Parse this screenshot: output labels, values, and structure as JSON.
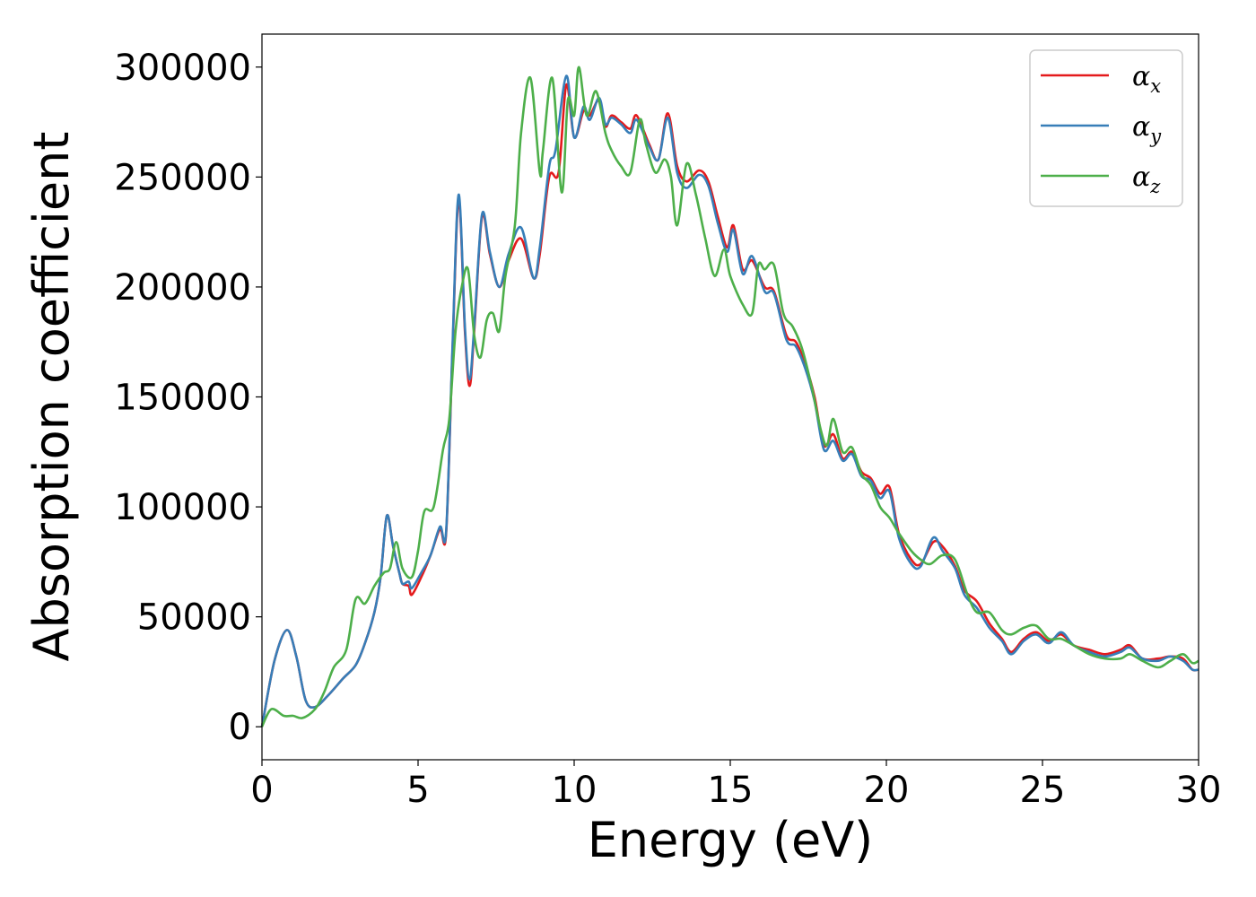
{
  "chart_data": {
    "type": "line",
    "title": "",
    "xlabel": "Energy (eV)",
    "ylabel": "Absorption coefficient",
    "xlim": [
      0,
      30
    ],
    "ylim": [
      -15000,
      315000
    ],
    "xticks": [
      0,
      5,
      10,
      15,
      20,
      25,
      30
    ],
    "xtick_labels": [
      "0",
      "5",
      "10",
      "15",
      "20",
      "25",
      "30"
    ],
    "yticks": [
      0,
      50000,
      100000,
      150000,
      200000,
      250000,
      300000
    ],
    "ytick_labels": [
      "0",
      "50000",
      "100000",
      "150000",
      "200000",
      "250000",
      "300000"
    ],
    "grid": false,
    "legend_position": "top-right",
    "series": [
      {
        "name": "αx",
        "legend_base": "α",
        "legend_sub": "x",
        "color": "#e41a1c",
        "points": [
          [
            0,
            0
          ],
          [
            0.4,
            30000
          ],
          [
            0.8,
            44000
          ],
          [
            1.1,
            32000
          ],
          [
            1.4,
            12000
          ],
          [
            1.7,
            9000
          ],
          [
            2.1,
            14000
          ],
          [
            2.6,
            22000
          ],
          [
            3.0,
            28000
          ],
          [
            3.3,
            38000
          ],
          [
            3.6,
            52000
          ],
          [
            3.8,
            68000
          ],
          [
            4.0,
            96000
          ],
          [
            4.2,
            82000
          ],
          [
            4.4,
            70000
          ],
          [
            4.5,
            65000
          ],
          [
            4.7,
            64000
          ],
          [
            4.8,
            60000
          ],
          [
            5.1,
            68000
          ],
          [
            5.4,
            78000
          ],
          [
            5.7,
            90000
          ],
          [
            5.9,
            88000
          ],
          [
            6.1,
            170000
          ],
          [
            6.3,
            240000
          ],
          [
            6.5,
            180000
          ],
          [
            6.65,
            155000
          ],
          [
            6.8,
            180000
          ],
          [
            7.05,
            232000
          ],
          [
            7.3,
            215000
          ],
          [
            7.6,
            200000
          ],
          [
            7.9,
            212000
          ],
          [
            8.3,
            222000
          ],
          [
            8.7,
            204000
          ],
          [
            8.9,
            215000
          ],
          [
            9.2,
            250000
          ],
          [
            9.5,
            252000
          ],
          [
            9.75,
            292000
          ],
          [
            10.0,
            268000
          ],
          [
            10.3,
            280000
          ],
          [
            10.5,
            278000
          ],
          [
            10.8,
            285000
          ],
          [
            11.0,
            273000
          ],
          [
            11.2,
            278000
          ],
          [
            11.5,
            275000
          ],
          [
            11.8,
            272000
          ],
          [
            12.0,
            278000
          ],
          [
            12.4,
            265000
          ],
          [
            12.7,
            258000
          ],
          [
            13.0,
            279000
          ],
          [
            13.3,
            255000
          ],
          [
            13.6,
            248000
          ],
          [
            14.0,
            253000
          ],
          [
            14.3,
            248000
          ],
          [
            14.6,
            232000
          ],
          [
            14.9,
            218000
          ],
          [
            15.1,
            228000
          ],
          [
            15.4,
            208000
          ],
          [
            15.7,
            212000
          ],
          [
            16.1,
            200000
          ],
          [
            16.4,
            198000
          ],
          [
            16.8,
            178000
          ],
          [
            17.1,
            175000
          ],
          [
            17.4,
            165000
          ],
          [
            17.7,
            150000
          ],
          [
            18.0,
            128000
          ],
          [
            18.3,
            133000
          ],
          [
            18.6,
            122000
          ],
          [
            18.9,
            125000
          ],
          [
            19.2,
            116000
          ],
          [
            19.5,
            113000
          ],
          [
            19.8,
            106000
          ],
          [
            20.1,
            109000
          ],
          [
            20.4,
            88000
          ],
          [
            20.8,
            76000
          ],
          [
            21.1,
            74000
          ],
          [
            21.5,
            84000
          ],
          [
            21.8,
            82000
          ],
          [
            22.2,
            73000
          ],
          [
            22.5,
            62000
          ],
          [
            22.9,
            57000
          ],
          [
            23.3,
            47000
          ],
          [
            23.7,
            40000
          ],
          [
            24.0,
            34000
          ],
          [
            24.4,
            40000
          ],
          [
            24.8,
            43000
          ],
          [
            25.2,
            39000
          ],
          [
            25.6,
            42000
          ],
          [
            26.0,
            37000
          ],
          [
            26.5,
            35000
          ],
          [
            27.0,
            33000
          ],
          [
            27.5,
            35000
          ],
          [
            27.8,
            37000
          ],
          [
            28.2,
            31000
          ],
          [
            28.7,
            31000
          ],
          [
            29.1,
            32000
          ],
          [
            29.5,
            31000
          ],
          [
            29.8,
            26000
          ],
          [
            30.0,
            26000
          ]
        ]
      },
      {
        "name": "αy",
        "legend_base": "α",
        "legend_sub": "y",
        "color": "#377eb8",
        "points": [
          [
            0,
            0
          ],
          [
            0.4,
            30000
          ],
          [
            0.8,
            44000
          ],
          [
            1.1,
            32000
          ],
          [
            1.4,
            12000
          ],
          [
            1.7,
            9000
          ],
          [
            2.1,
            14000
          ],
          [
            2.6,
            22000
          ],
          [
            3.0,
            28000
          ],
          [
            3.3,
            38000
          ],
          [
            3.6,
            52000
          ],
          [
            3.8,
            68000
          ],
          [
            4.0,
            96000
          ],
          [
            4.2,
            82000
          ],
          [
            4.4,
            70000
          ],
          [
            4.5,
            65000
          ],
          [
            4.7,
            66000
          ],
          [
            4.8,
            63000
          ],
          [
            5.1,
            70000
          ],
          [
            5.4,
            78000
          ],
          [
            5.7,
            91000
          ],
          [
            5.9,
            89000
          ],
          [
            6.1,
            172000
          ],
          [
            6.3,
            242000
          ],
          [
            6.5,
            182000
          ],
          [
            6.65,
            158000
          ],
          [
            6.8,
            182000
          ],
          [
            7.05,
            233000
          ],
          [
            7.3,
            216000
          ],
          [
            7.6,
            200000
          ],
          [
            7.9,
            215000
          ],
          [
            8.3,
            227000
          ],
          [
            8.7,
            204000
          ],
          [
            8.9,
            218000
          ],
          [
            9.2,
            255000
          ],
          [
            9.4,
            262000
          ],
          [
            9.75,
            296000
          ],
          [
            10.0,
            268000
          ],
          [
            10.3,
            282000
          ],
          [
            10.5,
            276000
          ],
          [
            10.8,
            286000
          ],
          [
            11.0,
            274000
          ],
          [
            11.2,
            277000
          ],
          [
            11.5,
            274000
          ],
          [
            11.8,
            270000
          ],
          [
            12.0,
            276000
          ],
          [
            12.4,
            264000
          ],
          [
            12.7,
            258000
          ],
          [
            13.0,
            277000
          ],
          [
            13.3,
            252000
          ],
          [
            13.6,
            245000
          ],
          [
            14.0,
            251000
          ],
          [
            14.3,
            246000
          ],
          [
            14.6,
            229000
          ],
          [
            14.9,
            216000
          ],
          [
            15.1,
            226000
          ],
          [
            15.4,
            206000
          ],
          [
            15.7,
            214000
          ],
          [
            16.1,
            198000
          ],
          [
            16.4,
            197000
          ],
          [
            16.8,
            176000
          ],
          [
            17.1,
            173000
          ],
          [
            17.4,
            163000
          ],
          [
            17.7,
            148000
          ],
          [
            18.0,
            126000
          ],
          [
            18.3,
            130000
          ],
          [
            18.6,
            121000
          ],
          [
            18.9,
            124000
          ],
          [
            19.2,
            114000
          ],
          [
            19.5,
            112000
          ],
          [
            19.8,
            104000
          ],
          [
            20.1,
            107000
          ],
          [
            20.4,
            86000
          ],
          [
            20.8,
            74000
          ],
          [
            21.1,
            73000
          ],
          [
            21.5,
            86000
          ],
          [
            21.8,
            80000
          ],
          [
            22.2,
            72000
          ],
          [
            22.5,
            60000
          ],
          [
            22.9,
            54000
          ],
          [
            23.3,
            45000
          ],
          [
            23.7,
            39000
          ],
          [
            24.0,
            33000
          ],
          [
            24.4,
            39000
          ],
          [
            24.8,
            42000
          ],
          [
            25.2,
            38000
          ],
          [
            25.6,
            43000
          ],
          [
            26.0,
            37000
          ],
          [
            26.5,
            34000
          ],
          [
            27.0,
            32000
          ],
          [
            27.5,
            34000
          ],
          [
            27.8,
            36000
          ],
          [
            28.2,
            31000
          ],
          [
            28.7,
            30000
          ],
          [
            29.1,
            32000
          ],
          [
            29.5,
            30000
          ],
          [
            29.8,
            26000
          ],
          [
            30.0,
            26000
          ]
        ]
      },
      {
        "name": "αz",
        "legend_base": "α",
        "legend_sub": "z",
        "color": "#4daf4a",
        "points": [
          [
            0,
            0
          ],
          [
            0.3,
            8000
          ],
          [
            0.7,
            5000
          ],
          [
            1.0,
            5000
          ],
          [
            1.3,
            4000
          ],
          [
            1.7,
            8000
          ],
          [
            2.0,
            16000
          ],
          [
            2.3,
            27000
          ],
          [
            2.7,
            35000
          ],
          [
            3.0,
            58000
          ],
          [
            3.3,
            56000
          ],
          [
            3.6,
            64000
          ],
          [
            3.9,
            70000
          ],
          [
            4.1,
            72000
          ],
          [
            4.3,
            84000
          ],
          [
            4.5,
            72000
          ],
          [
            4.8,
            68000
          ],
          [
            5.0,
            80000
          ],
          [
            5.2,
            98000
          ],
          [
            5.5,
            100000
          ],
          [
            5.8,
            126000
          ],
          [
            6.0,
            140000
          ],
          [
            6.2,
            180000
          ],
          [
            6.4,
            200000
          ],
          [
            6.6,
            208000
          ],
          [
            6.8,
            178000
          ],
          [
            7.0,
            168000
          ],
          [
            7.2,
            185000
          ],
          [
            7.4,
            188000
          ],
          [
            7.6,
            180000
          ],
          [
            7.8,
            205000
          ],
          [
            8.1,
            228000
          ],
          [
            8.3,
            270000
          ],
          [
            8.6,
            295000
          ],
          [
            8.9,
            252000
          ],
          [
            9.0,
            262000
          ],
          [
            9.3,
            295000
          ],
          [
            9.6,
            243000
          ],
          [
            9.8,
            285000
          ],
          [
            10.0,
            278000
          ],
          [
            10.15,
            300000
          ],
          [
            10.4,
            278000
          ],
          [
            10.7,
            289000
          ],
          [
            11.0,
            270000
          ],
          [
            11.2,
            262000
          ],
          [
            11.5,
            255000
          ],
          [
            11.8,
            252000
          ],
          [
            12.1,
            276000
          ],
          [
            12.3,
            265000
          ],
          [
            12.6,
            252000
          ],
          [
            12.9,
            258000
          ],
          [
            13.1,
            250000
          ],
          [
            13.3,
            228000
          ],
          [
            13.6,
            256000
          ],
          [
            13.9,
            242000
          ],
          [
            14.2,
            222000
          ],
          [
            14.5,
            205000
          ],
          [
            14.8,
            217000
          ],
          [
            15.0,
            205000
          ],
          [
            15.4,
            192000
          ],
          [
            15.7,
            188000
          ],
          [
            15.9,
            210000
          ],
          [
            16.1,
            208000
          ],
          [
            16.4,
            210000
          ],
          [
            16.7,
            188000
          ],
          [
            17.0,
            182000
          ],
          [
            17.3,
            172000
          ],
          [
            17.6,
            155000
          ],
          [
            17.9,
            135000
          ],
          [
            18.1,
            128000
          ],
          [
            18.3,
            140000
          ],
          [
            18.6,
            125000
          ],
          [
            18.9,
            127000
          ],
          [
            19.2,
            115000
          ],
          [
            19.5,
            110000
          ],
          [
            19.8,
            100000
          ],
          [
            20.1,
            95000
          ],
          [
            20.4,
            88000
          ],
          [
            20.8,
            80000
          ],
          [
            21.1,
            76000
          ],
          [
            21.4,
            74000
          ],
          [
            21.8,
            78000
          ],
          [
            22.2,
            76000
          ],
          [
            22.6,
            60000
          ],
          [
            22.9,
            52000
          ],
          [
            23.3,
            52000
          ],
          [
            23.7,
            44000
          ],
          [
            24.0,
            42000
          ],
          [
            24.4,
            45000
          ],
          [
            24.8,
            46000
          ],
          [
            25.2,
            40000
          ],
          [
            25.6,
            40000
          ],
          [
            26.0,
            37000
          ],
          [
            26.5,
            33000
          ],
          [
            27.0,
            31000
          ],
          [
            27.5,
            31000
          ],
          [
            27.8,
            33000
          ],
          [
            28.2,
            30000
          ],
          [
            28.7,
            27000
          ],
          [
            29.1,
            30000
          ],
          [
            29.5,
            33000
          ],
          [
            29.8,
            29000
          ],
          [
            30.0,
            30000
          ]
        ]
      }
    ]
  }
}
